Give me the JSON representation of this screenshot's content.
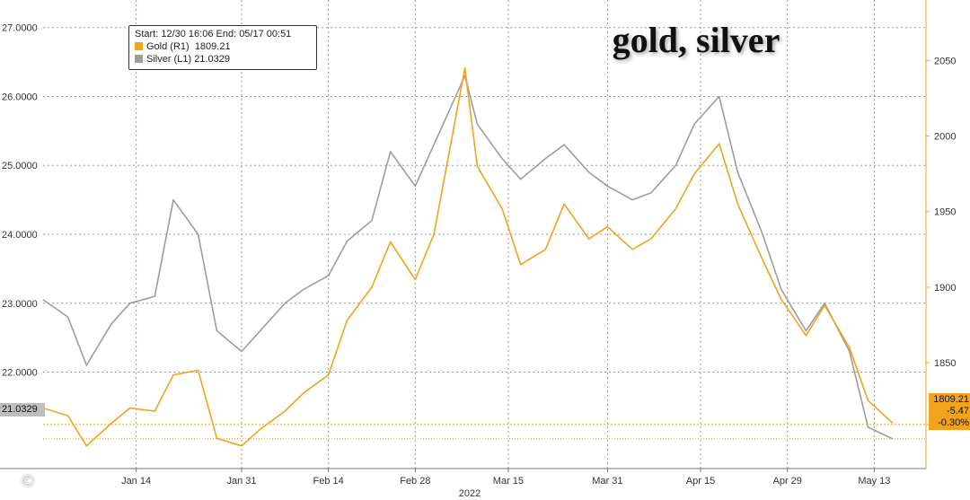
{
  "chart_data": {
    "type": "line",
    "title": "gold, silver",
    "year_label": "2022",
    "x_ticks": [
      "Jan 14",
      "Jan 31",
      "Feb 14",
      "Feb 28",
      "Mar 15",
      "Mar 31",
      "Apr 15",
      "Apr 29",
      "May 13"
    ],
    "legend": {
      "range_label": "Start: 12/30 16:06 End: 05/17 00:51",
      "items": [
        {
          "series": "gold",
          "label": "Gold (R1)",
          "value": "1809.21"
        },
        {
          "series": "silver",
          "label": "Silver (L1)",
          "value": "21.0329"
        }
      ],
      "placement": "top-left"
    },
    "left_axis": {
      "label": "",
      "ylim": [
        20.6,
        27.4
      ],
      "ticks": [
        "22.0000",
        "23.0000",
        "24.0000",
        "25.0000",
        "26.0000",
        "27.0000"
      ]
    },
    "right_axis": {
      "label": "",
      "ylim": [
        1780,
        2090
      ],
      "ticks": [
        "1850",
        "1900",
        "1950",
        "2000",
        "2050"
      ]
    },
    "grid": true,
    "silver_last": "21.0329",
    "gold_badge": {
      "last": "1809.21",
      "change": "-5.47",
      "pct": "-0.30%"
    },
    "colors": {
      "gold": "#F3A21B",
      "silver": "#9D9D9D",
      "gold_badge_bg": "#F3A21B",
      "silver_badge_bg": "#BEBEBE",
      "grid": "#9A9A9A"
    },
    "series": [
      {
        "name": "Gold (R1)",
        "axis": "right",
        "x": [
          "2021-12-30",
          "2022-01-03",
          "2022-01-06",
          "2022-01-10",
          "2022-01-13",
          "2022-01-17",
          "2022-01-20",
          "2022-01-24",
          "2022-01-27",
          "2022-01-31",
          "2022-02-03",
          "2022-02-07",
          "2022-02-10",
          "2022-02-14",
          "2022-02-17",
          "2022-02-21",
          "2022-02-24",
          "2022-02-28",
          "2022-03-03",
          "2022-03-08",
          "2022-03-10",
          "2022-03-14",
          "2022-03-17",
          "2022-03-21",
          "2022-03-24",
          "2022-03-28",
          "2022-03-31",
          "2022-04-04",
          "2022-04-07",
          "2022-04-11",
          "2022-04-14",
          "2022-04-18",
          "2022-04-21",
          "2022-04-25",
          "2022-04-28",
          "2022-05-02",
          "2022-05-05",
          "2022-05-09",
          "2022-05-12",
          "2022-05-16"
        ],
        "values": [
          1820,
          1815,
          1795,
          1810,
          1820,
          1818,
          1842,
          1845,
          1800,
          1795,
          1806,
          1818,
          1830,
          1842,
          1878,
          1900,
          1930,
          1905,
          1935,
          2045,
          1980,
          1952,
          1915,
          1925,
          1955,
          1932,
          1940,
          1925,
          1932,
          1952,
          1975,
          1995,
          1955,
          1918,
          1892,
          1868,
          1888,
          1860,
          1825,
          1810
        ]
      },
      {
        "name": "Silver (L1)",
        "axis": "left",
        "x": [
          "2021-12-30",
          "2022-01-03",
          "2022-01-06",
          "2022-01-10",
          "2022-01-13",
          "2022-01-17",
          "2022-01-20",
          "2022-01-24",
          "2022-01-27",
          "2022-01-31",
          "2022-02-03",
          "2022-02-07",
          "2022-02-10",
          "2022-02-14",
          "2022-02-17",
          "2022-02-21",
          "2022-02-24",
          "2022-02-28",
          "2022-03-03",
          "2022-03-08",
          "2022-03-10",
          "2022-03-14",
          "2022-03-17",
          "2022-03-21",
          "2022-03-24",
          "2022-03-28",
          "2022-03-31",
          "2022-04-04",
          "2022-04-07",
          "2022-04-11",
          "2022-04-14",
          "2022-04-18",
          "2022-04-21",
          "2022-04-25",
          "2022-04-28",
          "2022-05-02",
          "2022-05-05",
          "2022-05-09",
          "2022-05-12",
          "2022-05-16"
        ],
        "values": [
          23.05,
          22.8,
          22.1,
          22.7,
          23.0,
          23.1,
          24.5,
          24.0,
          22.6,
          22.3,
          22.6,
          23.0,
          23.2,
          23.4,
          23.9,
          24.2,
          25.2,
          24.7,
          25.3,
          26.3,
          25.6,
          25.1,
          24.8,
          25.1,
          25.3,
          24.9,
          24.7,
          24.5,
          24.6,
          25.0,
          25.6,
          26.0,
          24.9,
          24.0,
          23.2,
          22.6,
          23.0,
          22.3,
          21.2,
          21.03
        ]
      }
    ]
  }
}
